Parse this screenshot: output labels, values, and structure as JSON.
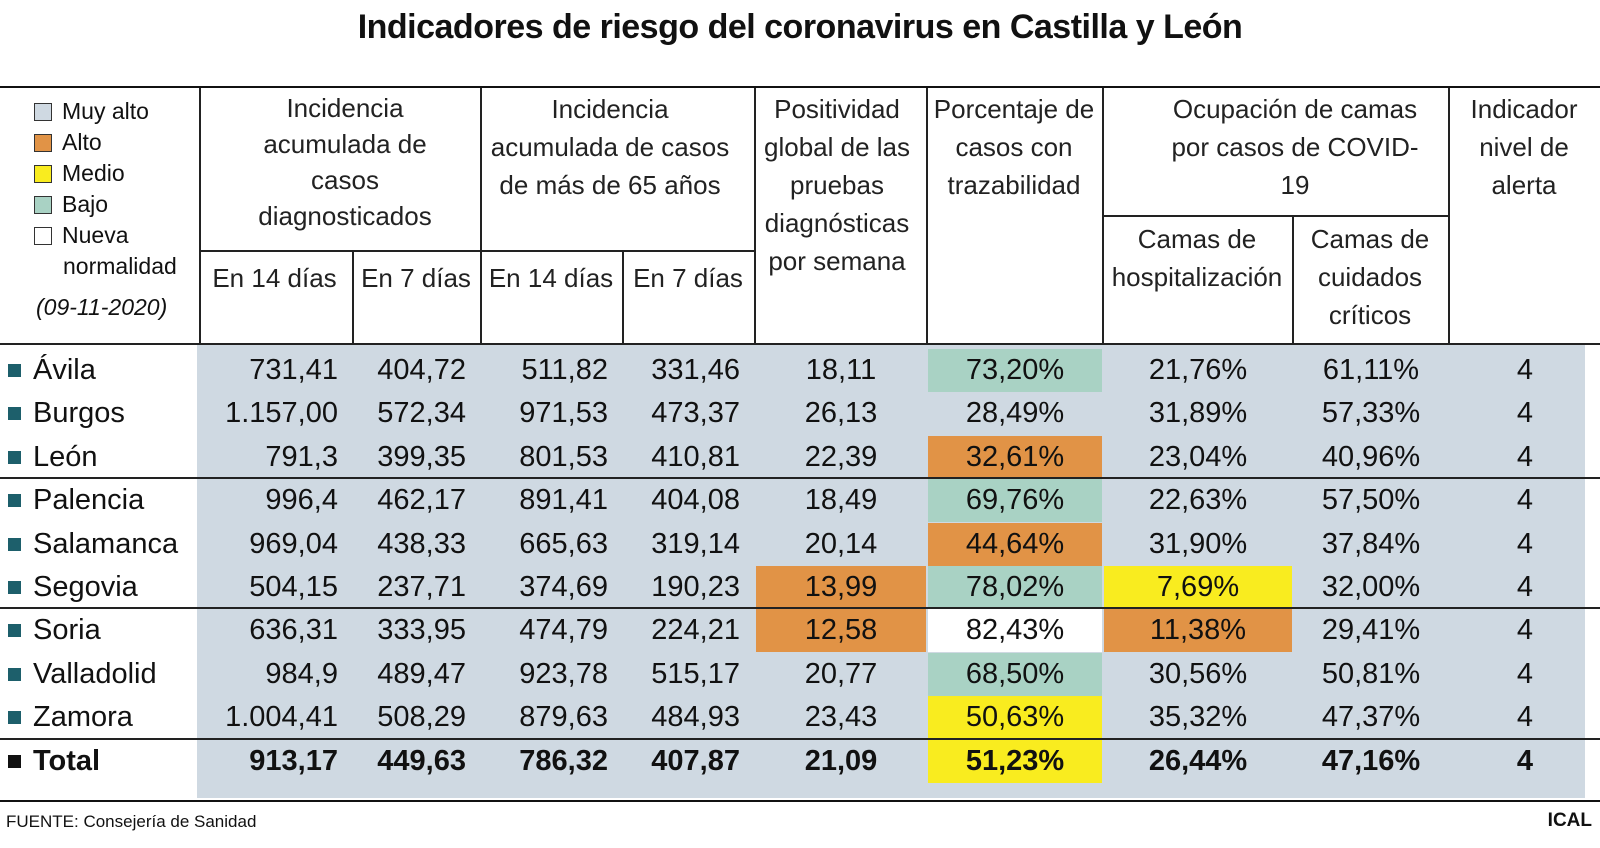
{
  "title": "Indicadores de riesgo del coronavirus en Castilla y León",
  "legend": {
    "items": [
      {
        "label": "Muy alto",
        "color": "#cfd9e2"
      },
      {
        "label": "Alto",
        "color": "#e19346"
      },
      {
        "label": "Medio",
        "color": "#f9ec1f"
      },
      {
        "label": "Bajo",
        "color": "#a9d2c4"
      },
      {
        "label": "Nueva",
        "color": "#ffffff"
      }
    ],
    "continuation": "normalidad",
    "date": "(09-11-2020)"
  },
  "headers": {
    "incidencia": "Incidencia acumulada de casos diagnosticados",
    "incidencia65": "Incidencia acumulada de casos de más de 65 años",
    "positividad": "Positividad global de las pruebas diagnósticas por semana",
    "trazabilidad": "Porcentaje de casos con trazabilidad",
    "ocupacion": "Ocupación de camas por casos de COVID-19",
    "alerta": "Indicador nivel de alerta",
    "en14": "En 14 días",
    "en7": "En 7 días",
    "hospitalizacion": "Camas de hospitalización",
    "criticos": "Camas de cuidados críticos"
  },
  "chart_data": {
    "type": "table",
    "title": "Indicadores de riesgo del coronavirus en Castilla y León",
    "columns": [
      "Incidencia acumulada de casos diagnosticados – En 14 días",
      "Incidencia acumulada de casos diagnosticados – En 7 días",
      "Incidencia acumulada de casos de más de 65 años – En 14 días",
      "Incidencia acumulada de casos de más de 65 años – En 7 días",
      "Positividad global de las pruebas diagnósticas por semana",
      "Porcentaje de casos con trazabilidad",
      "Ocupación de camas por casos de COVID-19 – Camas de hospitalización",
      "Ocupación de camas por casos de COVID-19 – Camas de cuidados críticos",
      "Indicador nivel de alerta"
    ],
    "rows": [
      {
        "name": "Ávila",
        "values": [
          "731,41",
          "404,72",
          "511,82",
          "331,46",
          "18,11",
          "73,20%",
          "21,76%",
          "61,11%",
          "4"
        ],
        "levels": [
          "muy-alto",
          "muy-alto",
          "muy-alto",
          "muy-alto",
          "muy-alto",
          "bajo",
          "muy-alto",
          "muy-alto",
          "muy-alto"
        ]
      },
      {
        "name": "Burgos",
        "values": [
          "1.157,00",
          "572,34",
          "971,53",
          "473,37",
          "26,13",
          "28,49%",
          "31,89%",
          "57,33%",
          "4"
        ],
        "levels": [
          "muy-alto",
          "muy-alto",
          "muy-alto",
          "muy-alto",
          "muy-alto",
          "muy-alto",
          "muy-alto",
          "muy-alto",
          "muy-alto"
        ]
      },
      {
        "name": "León",
        "values": [
          "791,3",
          "399,35",
          "801,53",
          "410,81",
          "22,39",
          "32,61%",
          "23,04%",
          "40,96%",
          "4"
        ],
        "levels": [
          "muy-alto",
          "muy-alto",
          "muy-alto",
          "muy-alto",
          "muy-alto",
          "alto",
          "muy-alto",
          "muy-alto",
          "muy-alto"
        ]
      },
      {
        "name": "Palencia",
        "values": [
          "996,4",
          "462,17",
          "891,41",
          "404,08",
          "18,49",
          "69,76%",
          "22,63%",
          "57,50%",
          "4"
        ],
        "levels": [
          "muy-alto",
          "muy-alto",
          "muy-alto",
          "muy-alto",
          "muy-alto",
          "bajo",
          "muy-alto",
          "muy-alto",
          "muy-alto"
        ]
      },
      {
        "name": "Salamanca",
        "values": [
          "969,04",
          "438,33",
          "665,63",
          "319,14",
          "20,14",
          "44,64%",
          "31,90%",
          "37,84%",
          "4"
        ],
        "levels": [
          "muy-alto",
          "muy-alto",
          "muy-alto",
          "muy-alto",
          "muy-alto",
          "alto",
          "muy-alto",
          "muy-alto",
          "muy-alto"
        ]
      },
      {
        "name": "Segovia",
        "values": [
          "504,15",
          "237,71",
          "374,69",
          "190,23",
          "13,99",
          "78,02%",
          "7,69%",
          "32,00%",
          "4"
        ],
        "levels": [
          "muy-alto",
          "muy-alto",
          "muy-alto",
          "muy-alto",
          "alto",
          "bajo",
          "medio",
          "muy-alto",
          "muy-alto"
        ]
      },
      {
        "name": "Soria",
        "values": [
          "636,31",
          "333,95",
          "474,79",
          "224,21",
          "12,58",
          "82,43%",
          "11,38%",
          "29,41%",
          "4"
        ],
        "levels": [
          "muy-alto",
          "muy-alto",
          "muy-alto",
          "muy-alto",
          "alto",
          "nueva",
          "alto",
          "muy-alto",
          "muy-alto"
        ]
      },
      {
        "name": "Valladolid",
        "values": [
          "984,9",
          "489,47",
          "923,78",
          "515,17",
          "20,77",
          "68,50%",
          "30,56%",
          "50,81%",
          "4"
        ],
        "levels": [
          "muy-alto",
          "muy-alto",
          "muy-alto",
          "muy-alto",
          "muy-alto",
          "bajo",
          "muy-alto",
          "muy-alto",
          "muy-alto"
        ]
      },
      {
        "name": "Zamora",
        "values": [
          "1.004,41",
          "508,29",
          "879,63",
          "484,93",
          "23,43",
          "50,63%",
          "35,32%",
          "47,37%",
          "4"
        ],
        "levels": [
          "muy-alto",
          "muy-alto",
          "muy-alto",
          "muy-alto",
          "muy-alto",
          "medio",
          "muy-alto",
          "muy-alto",
          "muy-alto"
        ]
      },
      {
        "name": "Total",
        "values": [
          "913,17",
          "449,63",
          "786,32",
          "407,87",
          "21,09",
          "51,23%",
          "26,44%",
          "47,16%",
          "4"
        ],
        "levels": [
          "muy-alto",
          "muy-alto",
          "muy-alto",
          "muy-alto",
          "muy-alto",
          "medio",
          "muy-alto",
          "muy-alto",
          "muy-alto"
        ]
      }
    ]
  },
  "level_colors": {
    "muy-alto": "#cfd9e2",
    "alto": "#e19346",
    "medio": "#f9ec1f",
    "bajo": "#a9d2c4",
    "nueva": "#ffffff"
  },
  "footer": {
    "source": "FUENTE: Consejería de Sanidad",
    "brand": "ICAL"
  }
}
